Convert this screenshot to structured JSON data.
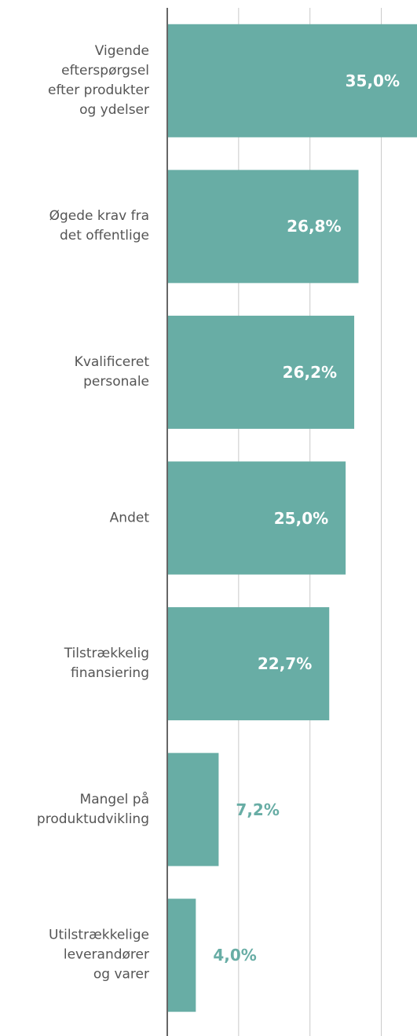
{
  "chart_data": {
    "type": "bar",
    "orientation": "horizontal",
    "categories": [
      "Vigende\nefterspørgsel\nefter produkter\nog ydelser",
      "Øgede krav fra\ndet offentlige",
      "Kvalificeret\npersonale",
      "Andet",
      "Tilstrækkelig\nfinansiering",
      "Mangel på\nproduktudvikling",
      "Utilstrækkelige\nleverandører\nog varer"
    ],
    "values": [
      35.0,
      26.8,
      26.2,
      25.0,
      22.7,
      7.2,
      4.0
    ],
    "value_labels": [
      "35,0%",
      "26,8%",
      "26,2%",
      "25,0%",
      "22,7%",
      "7,2%",
      "4,0%"
    ],
    "color": "#68ada5",
    "xlim": [
      0,
      35
    ],
    "xticks": [
      10,
      20,
      30
    ],
    "grid": true
  }
}
